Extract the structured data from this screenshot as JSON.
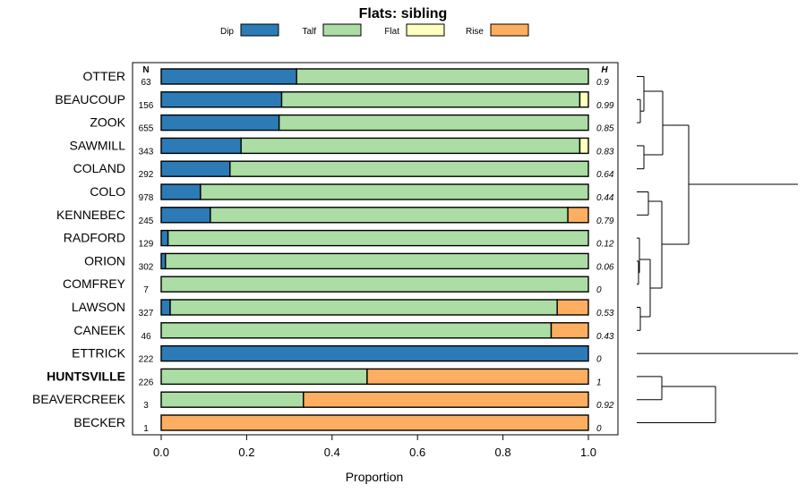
{
  "chart_data": {
    "type": "bar",
    "orientation": "horizontal",
    "stacked": true,
    "title": "Flats: sibling",
    "xlabel": "Proportion",
    "ylabel": "",
    "xlim": [
      0,
      1
    ],
    "xticks": [
      "0.0",
      "0.2",
      "0.4",
      "0.6",
      "0.8",
      "1.0"
    ],
    "n_header": "N",
    "h_header": "H",
    "legend": [
      {
        "name": "Dip",
        "color": "#2c7bb6"
      },
      {
        "name": "Talf",
        "color": "#abdda4"
      },
      {
        "name": "Flat",
        "color": "#ffffbf"
      },
      {
        "name": "Rise",
        "color": "#fdae61"
      }
    ],
    "categories": [
      "OTTER",
      "BEAUCOUP",
      "ZOOK",
      "SAWMILL",
      "COLAND",
      "COLO",
      "KENNEBEC",
      "RADFORD",
      "ORION",
      "COMFREY",
      "LAWSON",
      "CANEEK",
      "ETTRICK",
      "HUNTSVILLE",
      "BEAVERCREEK",
      "BECKER"
    ],
    "highlight": "HUNTSVILLE",
    "n": [
      "63",
      "156",
      "655",
      "343",
      "292",
      "978",
      "245",
      "129",
      "302",
      "7",
      "327",
      "46",
      "222",
      "226",
      "3",
      "1"
    ],
    "h": [
      "0.9",
      "0.99",
      "0.85",
      "0.83",
      "0.64",
      "0.44",
      "0.79",
      "0.12",
      "0.06",
      "0",
      "0.53",
      "0.43",
      "0",
      "1",
      "0.92",
      "0"
    ],
    "series": [
      {
        "name": "Dip",
        "values": [
          0.317,
          0.282,
          0.276,
          0.187,
          0.161,
          0.092,
          0.115,
          0.016,
          0.01,
          0.0,
          0.021,
          0.0,
          1.0,
          0.0,
          0.0,
          0.0
        ]
      },
      {
        "name": "Talf",
        "values": [
          0.683,
          0.698,
          0.724,
          0.793,
          0.839,
          0.908,
          0.837,
          0.984,
          0.99,
          1.0,
          0.906,
          0.913,
          0.0,
          0.482,
          0.333,
          0.0
        ]
      },
      {
        "name": "Flat",
        "values": [
          0.0,
          0.02,
          0.0,
          0.02,
          0.0,
          0.0,
          0.0,
          0.0,
          0.0,
          0.0,
          0.0,
          0.0,
          0.0,
          0.0,
          0.0,
          0.0
        ]
      },
      {
        "name": "Rise",
        "values": [
          0.0,
          0.0,
          0.0,
          0.0,
          0.0,
          0.0,
          0.048,
          0.0,
          0.0,
          0.0,
          0.073,
          0.087,
          0.0,
          0.518,
          0.667,
          1.0
        ]
      }
    ]
  }
}
